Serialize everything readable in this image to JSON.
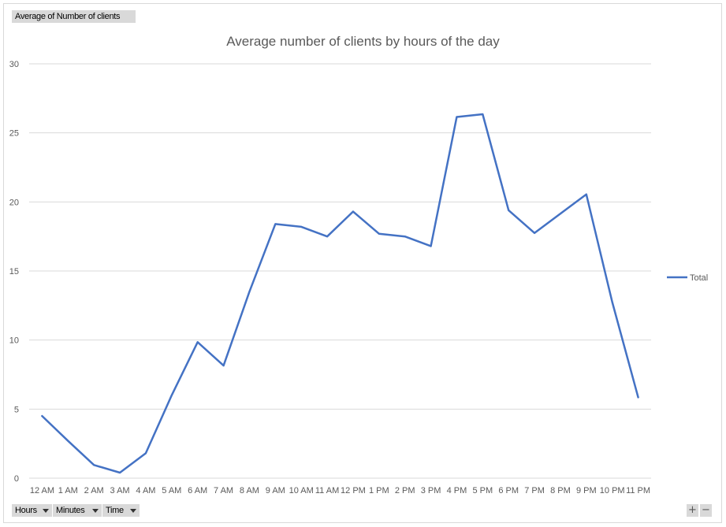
{
  "pivot": {
    "value_field": "Average of Number of clients",
    "axis_fields": [
      "Hours",
      "Minutes",
      "Time"
    ],
    "zoom_in": "+",
    "zoom_out": "−"
  },
  "chart_data": {
    "type": "line",
    "title": "Average number of clients by hours of the day",
    "xlabel": "",
    "ylabel": "",
    "ylim": [
      0,
      30
    ],
    "yticks": [
      0,
      5,
      10,
      15,
      20,
      25,
      30
    ],
    "grid": true,
    "legend_position": "right",
    "categories": [
      "12 AM",
      "1 AM",
      "2 AM",
      "3 AM",
      "4 AM",
      "5 AM",
      "6 AM",
      "7 AM",
      "8 AM",
      "9 AM",
      "10 AM",
      "11 AM",
      "12 PM",
      "1 PM",
      "2 PM",
      "3 PM",
      "4 PM",
      "5 PM",
      "6 PM",
      "7 PM",
      "8 PM",
      "9 PM",
      "10 PM",
      "11 PM"
    ],
    "series": [
      {
        "name": "Total",
        "color": "#4472c4",
        "values": [
          4.5,
          2.7,
          0.95,
          0.4,
          1.8,
          6.0,
          9.85,
          8.15,
          13.5,
          18.4,
          18.2,
          17.5,
          19.3,
          17.7,
          17.5,
          16.8,
          26.15,
          26.35,
          19.4,
          17.75,
          19.15,
          20.55,
          12.75,
          5.85
        ]
      }
    ]
  }
}
